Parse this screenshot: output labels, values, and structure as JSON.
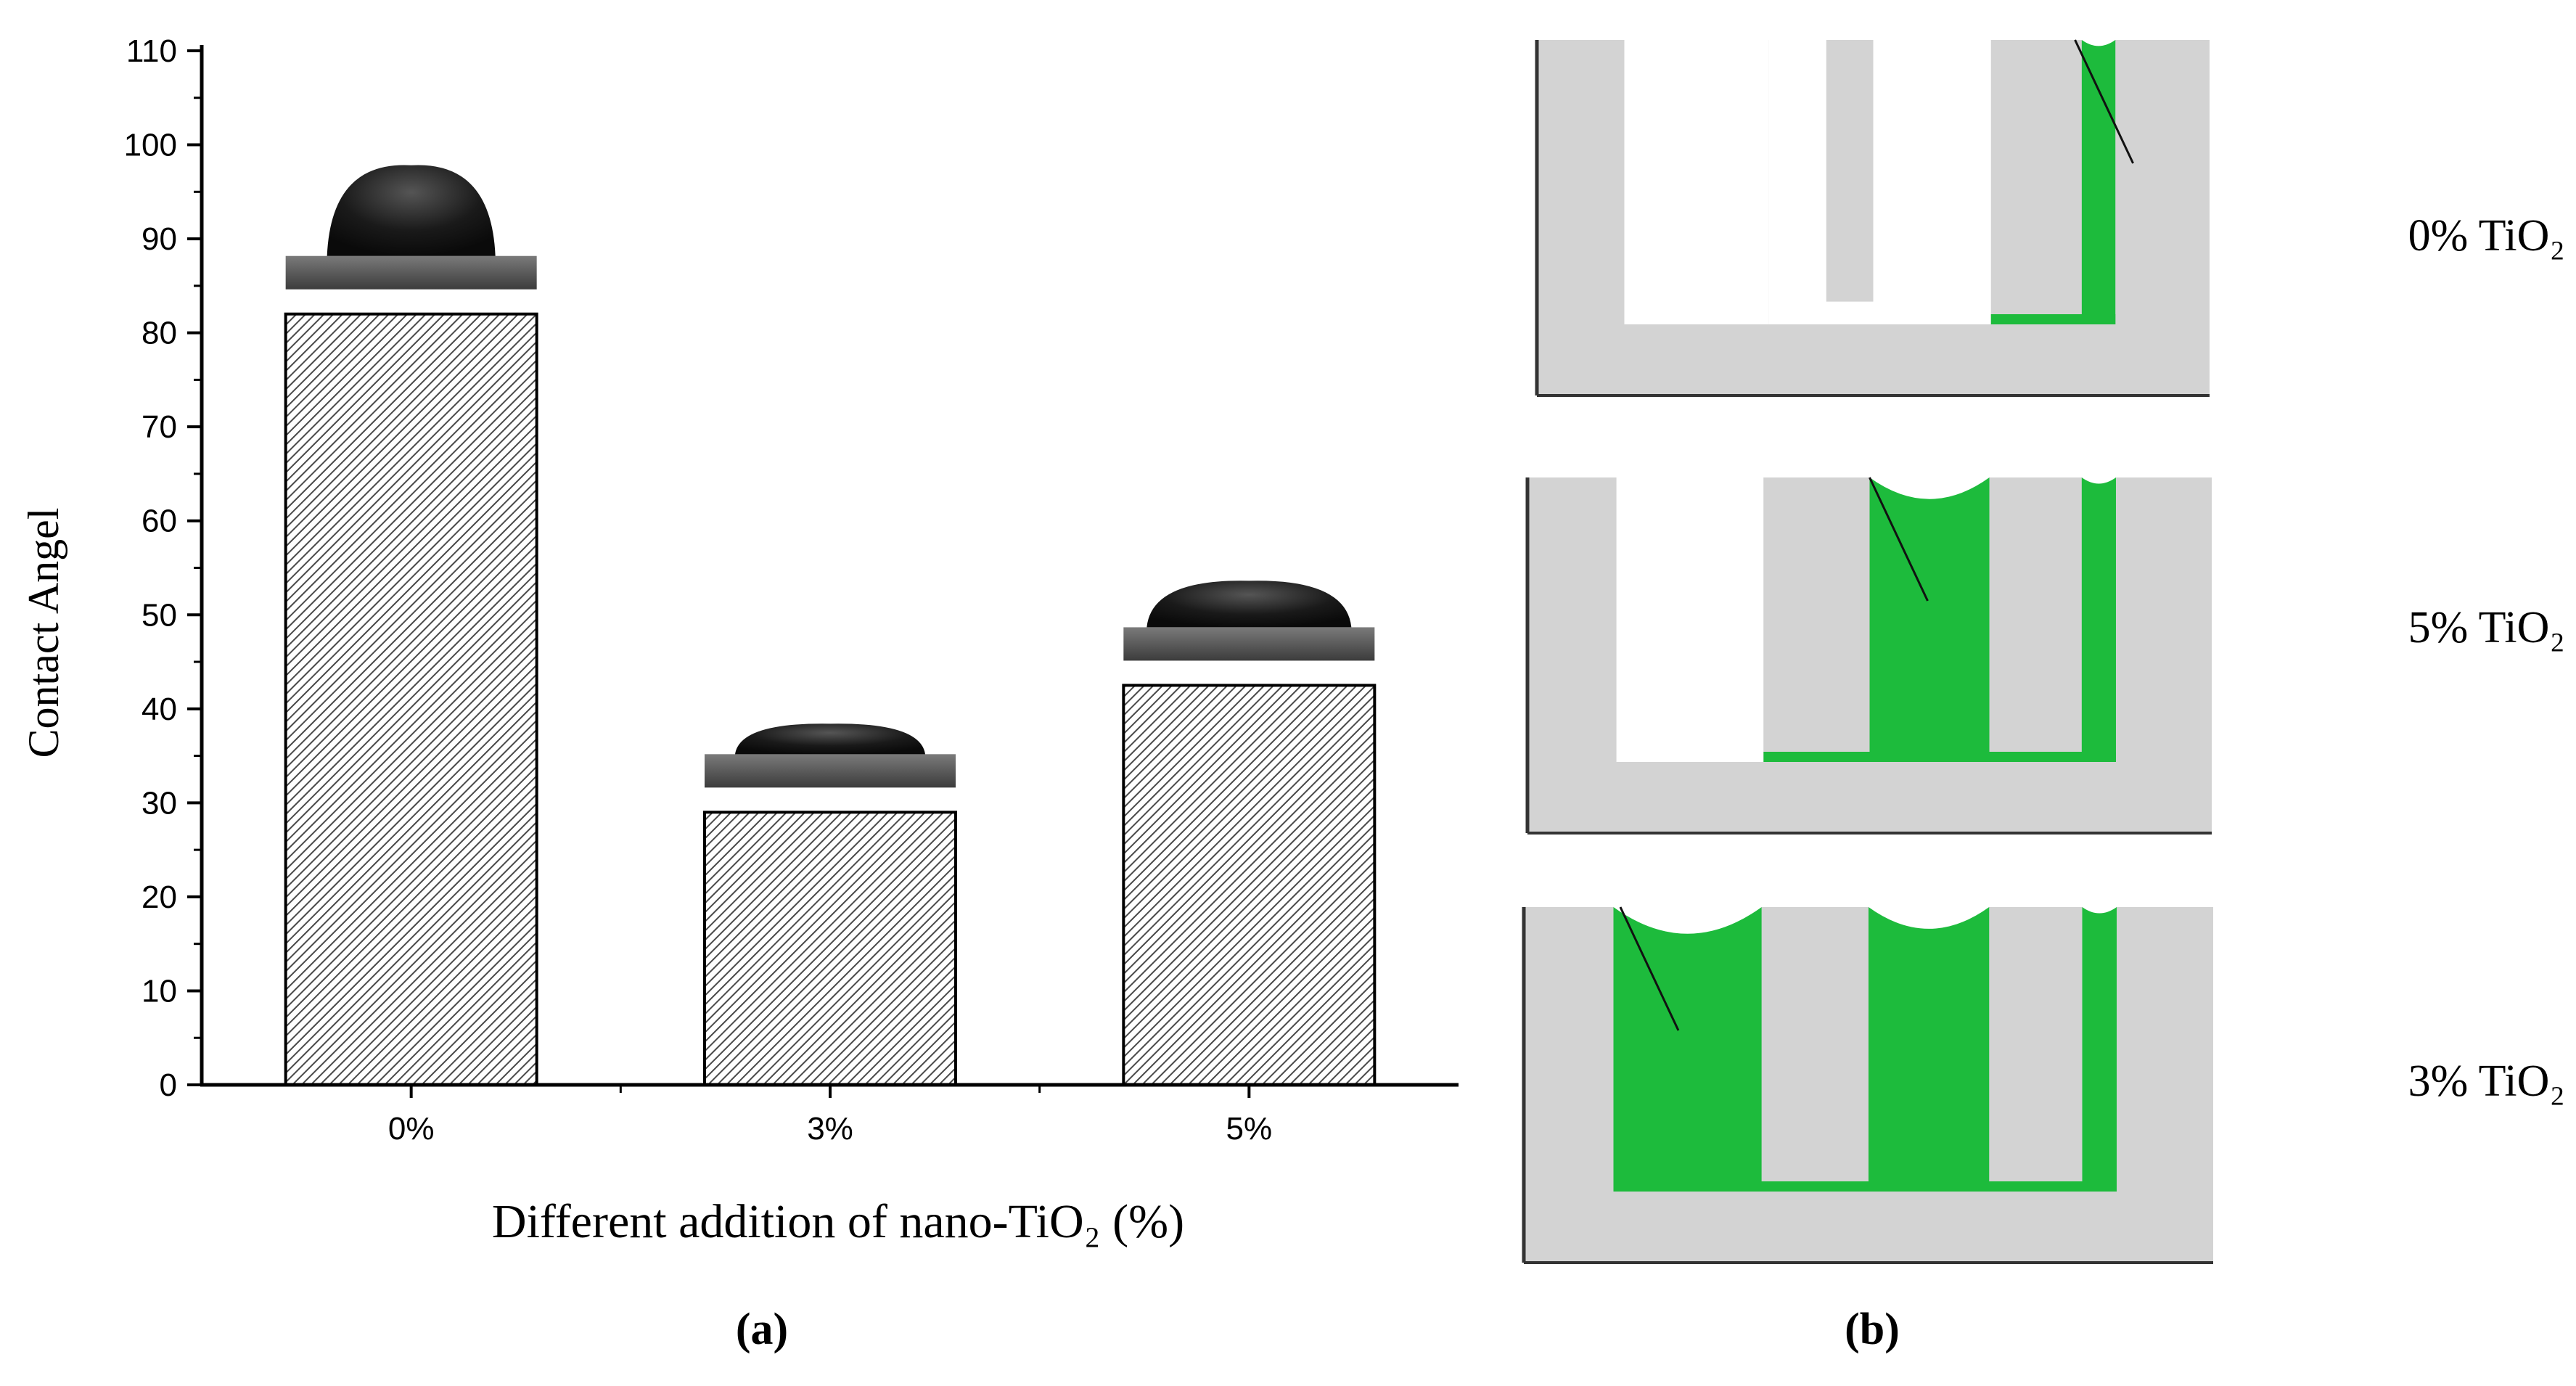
{
  "figure": {
    "panel_a_label": "(a)",
    "panel_b_label": "(b)"
  },
  "chart_data": {
    "type": "bar",
    "categories": [
      "0%",
      "3%",
      "5%"
    ],
    "values": [
      82,
      29,
      42.5
    ],
    "title": "",
    "xlabel": "Different addition of nano-TiO₂ (%)",
    "ylabel": "Contact Angel",
    "ylim": [
      0,
      110
    ],
    "yticks": [
      0,
      10,
      20,
      30,
      40,
      50,
      60,
      70,
      80,
      90,
      100,
      110
    ],
    "grid": false,
    "legend": "none",
    "bar_fill": "hatched gray",
    "droplet_insets": true
  },
  "schematic": {
    "panels": [
      {
        "label": "0% TiO₂",
        "filled_grooves": 1
      },
      {
        "label": "5% TiO₂",
        "filled_grooves": 2
      },
      {
        "label": "3% TiO₂",
        "filled_grooves": 3
      }
    ],
    "colors": {
      "substrate": "#d3d3d3",
      "liquid": "#1dbb3c",
      "outline": "#333333"
    }
  }
}
